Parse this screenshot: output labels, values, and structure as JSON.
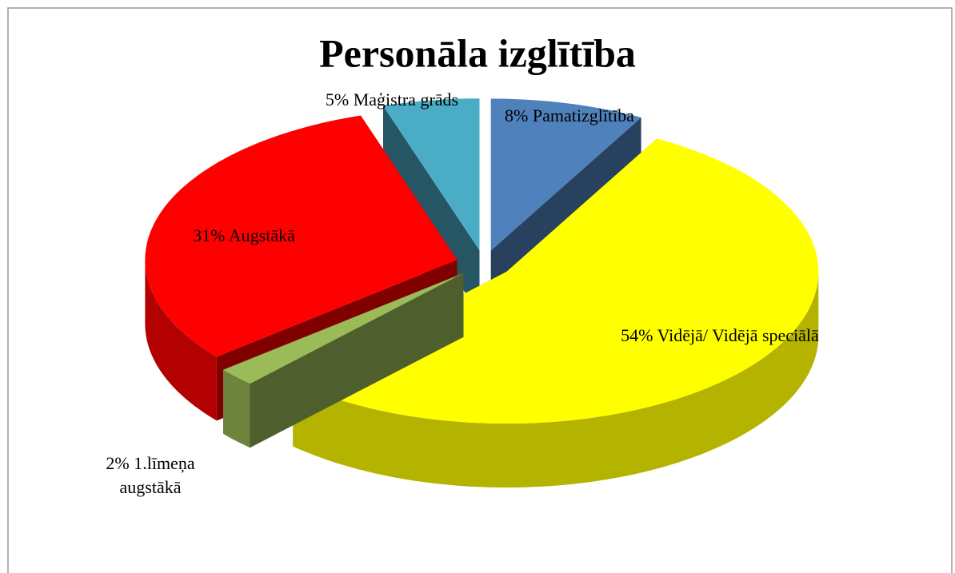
{
  "chart_data": {
    "type": "pie3d",
    "title": "Personāla izglītība",
    "categories": [
      "Pamatizglītība",
      "Vidējā/ Vidējā speciālā",
      "1.līmeņa augstākā",
      "Augstākā",
      "Maģistra grāds"
    ],
    "values": [
      8,
      54,
      2,
      31,
      5
    ],
    "value_labels": [
      "8%",
      "54%",
      "2%",
      "31%",
      "5%"
    ],
    "colors": [
      "#4f81bd",
      "#ffff00",
      "#9bbb59",
      "#ff0000",
      "#4bacc6"
    ]
  }
}
